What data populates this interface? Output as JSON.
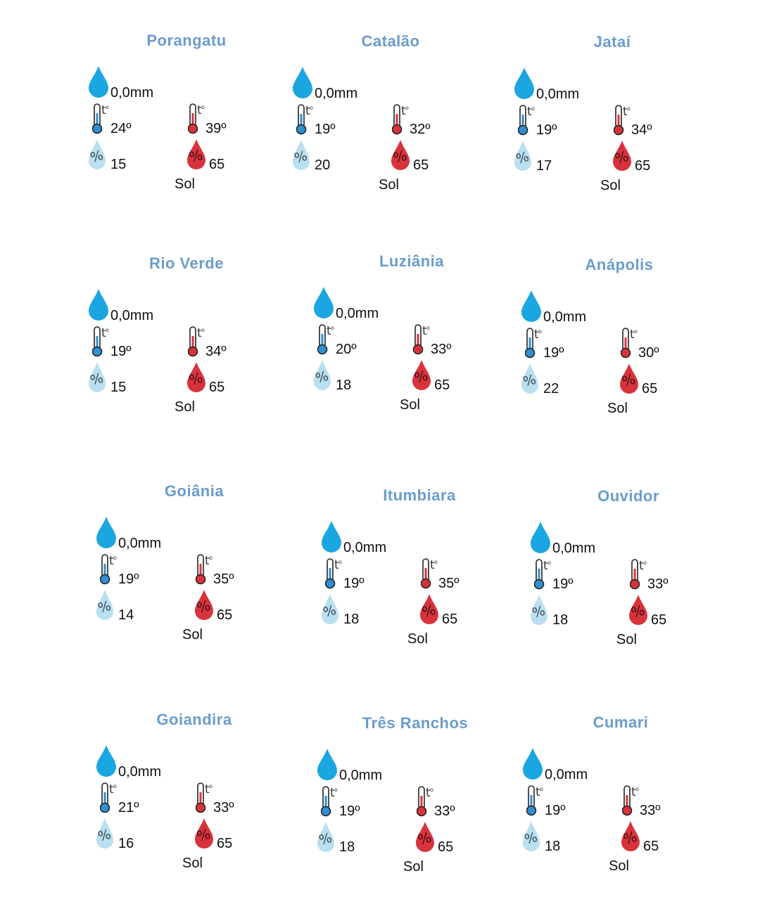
{
  "colors": {
    "title": "#6a9ccc",
    "rain_drop": "#1aa6e0",
    "min_temp": "#2f8fd0",
    "max_temp": "#d8333c",
    "humidity_min": "#b9dff1",
    "humidity_max": "#d8333c"
  },
  "icons": {
    "rain": "rain-drop-icon",
    "min_temp": "thermometer-cold-icon",
    "max_temp": "thermometer-hot-icon",
    "humidity_min": "humidity-low-icon",
    "humidity_max": "humidity-high-icon"
  },
  "cities": [
    {
      "name": "Porangatu",
      "rain": "0,0mm",
      "min_temp": "24º",
      "max_temp": "39º",
      "humidity_min": "15",
      "humidity_max": "65",
      "condition": "Sol"
    },
    {
      "name": "Catalão",
      "rain": "0,0mm",
      "min_temp": "19º",
      "max_temp": "32º",
      "humidity_min": "20",
      "humidity_max": "65",
      "condition": "Sol"
    },
    {
      "name": "Jataí",
      "rain": "0,0mm",
      "min_temp": "19º",
      "max_temp": "34º",
      "humidity_min": "17",
      "humidity_max": "65",
      "condition": "Sol"
    },
    {
      "name": "Rio Verde",
      "rain": "0,0mm",
      "min_temp": "19º",
      "max_temp": "34º",
      "humidity_min": "15",
      "humidity_max": "65",
      "condition": "Sol"
    },
    {
      "name": "Luziânia",
      "rain": "0,0mm",
      "min_temp": "20º",
      "max_temp": "33º",
      "humidity_min": "18",
      "humidity_max": "65",
      "condition": "Sol"
    },
    {
      "name": "Anápolis",
      "rain": "0,0mm",
      "min_temp": "19º",
      "max_temp": "30º",
      "humidity_min": "22",
      "humidity_max": "65",
      "condition": "Sol"
    },
    {
      "name": "Goiânia",
      "rain": "0,0mm",
      "min_temp": "19º",
      "max_temp": "35º",
      "humidity_min": "14",
      "humidity_max": "65",
      "condition": "Sol"
    },
    {
      "name": "Itumbiara",
      "rain": "0,0mm",
      "min_temp": "19º",
      "max_temp": "35º",
      "humidity_min": "18",
      "humidity_max": "65",
      "condition": "Sol"
    },
    {
      "name": "Ouvidor",
      "rain": "0,0mm",
      "min_temp": "19º",
      "max_temp": "33º",
      "humidity_min": "18",
      "humidity_max": "65",
      "condition": "Sol"
    },
    {
      "name": "Goiandira",
      "rain": "0,0mm",
      "min_temp": "21º",
      "max_temp": "33º",
      "humidity_min": "16",
      "humidity_max": "65",
      "condition": "Sol"
    },
    {
      "name": "Três Ranchos",
      "rain": "0,0mm",
      "min_temp": "19º",
      "max_temp": "33º",
      "humidity_min": "18",
      "humidity_max": "65",
      "condition": "Sol"
    },
    {
      "name": "Cumari",
      "rain": "0,0mm",
      "min_temp": "19º",
      "max_temp": "33º",
      "humidity_min": "18",
      "humidity_max": "65",
      "condition": "Sol"
    }
  ]
}
